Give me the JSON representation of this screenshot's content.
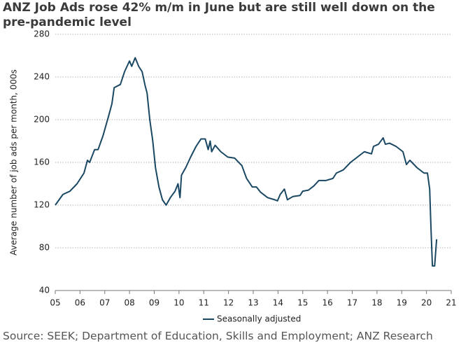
{
  "chart_data": {
    "type": "line",
    "title": [
      "ANZ Job Ads rose 42% m/m in June but are still well down on the",
      "pre-pandemic level"
    ],
    "ylabel": "Average number of job ads per month, 000s",
    "source": "Source: SEEK; Department of Education, Skills and Employment; ANZ Research",
    "xlim": [
      2005,
      2021
    ],
    "xticks": [
      {
        "value": 2005,
        "label": "05"
      },
      {
        "value": 2006,
        "label": "06"
      },
      {
        "value": 2007,
        "label": "07"
      },
      {
        "value": 2008,
        "label": "08"
      },
      {
        "value": 2009,
        "label": "09"
      },
      {
        "value": 2010,
        "label": "10"
      },
      {
        "value": 2011,
        "label": "11"
      },
      {
        "value": 2012,
        "label": "12"
      },
      {
        "value": 2013,
        "label": "13"
      },
      {
        "value": 2014,
        "label": "14"
      },
      {
        "value": 2015,
        "label": "15"
      },
      {
        "value": 2016,
        "label": "16"
      },
      {
        "value": 2017,
        "label": "17"
      },
      {
        "value": 2018,
        "label": "18"
      },
      {
        "value": 2019,
        "label": "19"
      },
      {
        "value": 2020,
        "label": "20"
      },
      {
        "value": 2021,
        "label": "21"
      }
    ],
    "ylim": [
      40,
      280
    ],
    "yticks": [
      40,
      80,
      120,
      160,
      200,
      240,
      280
    ],
    "grid": true,
    "legend": "bottom",
    "x": [
      2005.0,
      2005.31,
      2005.59,
      2005.88,
      2006.16,
      2006.3,
      2006.39,
      2006.59,
      2006.73,
      2006.93,
      2007.15,
      2007.29,
      2007.38,
      2007.63,
      2007.8,
      2008.0,
      2008.09,
      2008.23,
      2008.37,
      2008.51,
      2008.63,
      2008.71,
      2008.82,
      2008.94,
      2009.05,
      2009.19,
      2009.33,
      2009.48,
      2009.65,
      2009.84,
      2009.96,
      2010.04,
      2010.1,
      2010.27,
      2010.47,
      2010.69,
      2010.89,
      2011.06,
      2011.18,
      2011.26,
      2011.32,
      2011.46,
      2011.69,
      2011.97,
      2012.25,
      2012.54,
      2012.73,
      2012.96,
      2013.13,
      2013.3,
      2013.58,
      2013.87,
      2013.98,
      2014.09,
      2014.26,
      2014.38,
      2014.6,
      2014.89,
      2015.0,
      2015.23,
      2015.45,
      2015.65,
      2015.93,
      2016.22,
      2016.36,
      2016.64,
      2016.93,
      2017.21,
      2017.49,
      2017.78,
      2017.86,
      2018.06,
      2018.25,
      2018.34,
      2018.51,
      2018.77,
      2019.05,
      2019.19,
      2019.33,
      2019.62,
      2019.9,
      2020.04,
      2020.13,
      2020.18,
      2020.24,
      2020.33,
      2020.41
    ],
    "series": [
      {
        "name": "Seasonally adjusted",
        "color": "#1a4863",
        "values": [
          120,
          130,
          133,
          140,
          150,
          162,
          160,
          172,
          172,
          185,
          203,
          215,
          230,
          233,
          245,
          255,
          250,
          258,
          250,
          245,
          232,
          225,
          200,
          180,
          155,
          137,
          125,
          120,
          127,
          133,
          140,
          127,
          148,
          155,
          165,
          175,
          182,
          182,
          172,
          180,
          170,
          176,
          170,
          165,
          164,
          157,
          145,
          137,
          137,
          132,
          127,
          125,
          124,
          130,
          135,
          125,
          128,
          129,
          133,
          134,
          138,
          143,
          143,
          145,
          150,
          153,
          160,
          165,
          170,
          168,
          175,
          177,
          183,
          177,
          178,
          175,
          170,
          158,
          162,
          155,
          150,
          150,
          135,
          100,
          63,
          63,
          88
        ]
      }
    ]
  }
}
